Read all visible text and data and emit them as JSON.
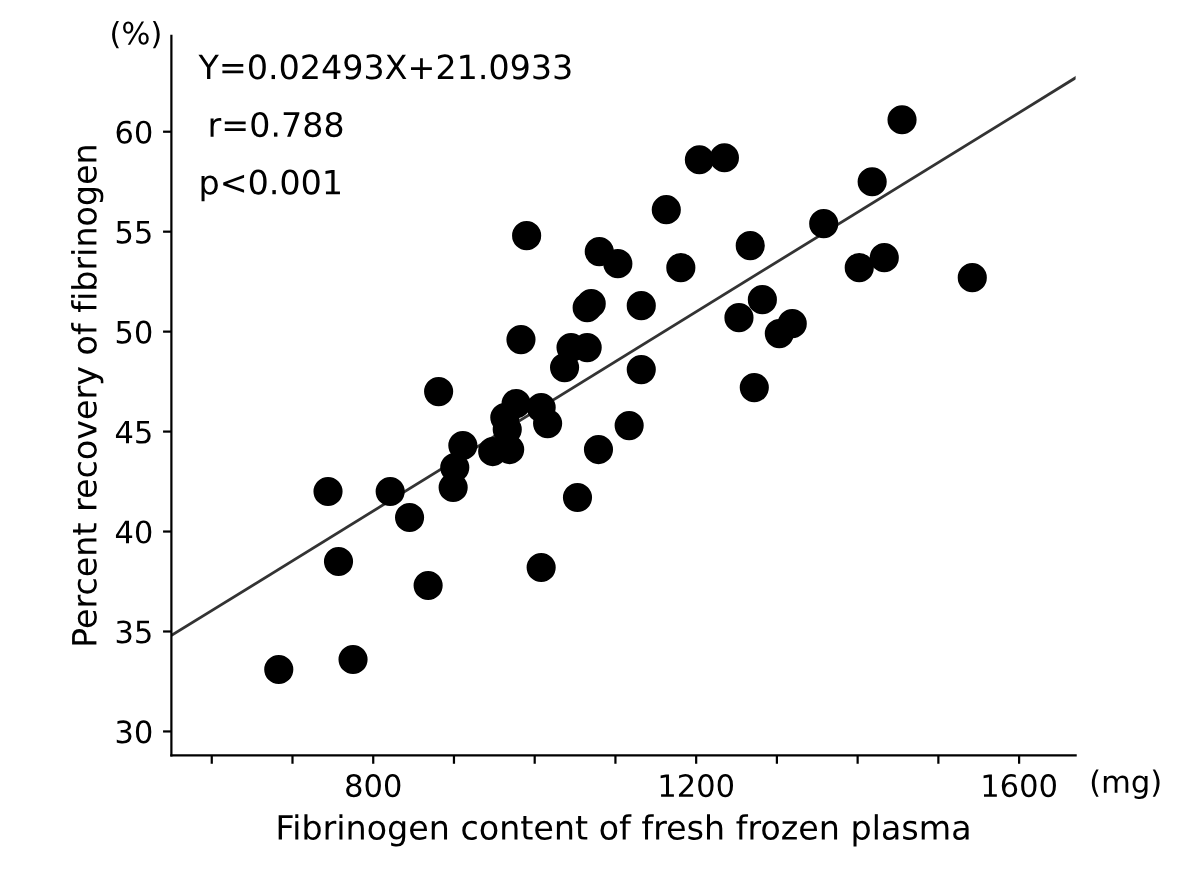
{
  "chart_data": {
    "type": "scatter",
    "xlabel": "Fibrinogen content of fresh frozen plasma",
    "ylabel": "Percent recovery of fibrinogen",
    "annotations": [
      "Y=0.02493X+21.0933",
      "r=0.788",
      "p<0.001",
      "(%)",
      "(mg)"
    ],
    "xlim": [
      550,
      1670
    ],
    "ylim": [
      28.8,
      64.8
    ],
    "xticks": [
      {
        "value": 600,
        "label": null
      },
      {
        "value": 700,
        "label": null
      },
      800,
      {
        "value": 900,
        "label": null
      },
      {
        "value": 1000,
        "label": null
      },
      {
        "value": 1100,
        "label": null
      },
      1200,
      {
        "value": 1300,
        "label": null
      },
      {
        "value": 1400,
        "label": null
      },
      {
        "value": 1500,
        "label": null
      },
      1600
    ],
    "yticks": [
      30,
      35,
      40,
      45,
      50,
      55,
      60
    ],
    "grid": false,
    "legend": false,
    "marker": "circle",
    "series": [
      {
        "color": "#000000",
        "x": [
          683,
          775,
          744,
          757,
          821,
          845,
          868,
          881,
          911,
          901,
          899,
          948,
          969,
          966,
          963,
          977,
          983,
          990,
          1008,
          1016,
          1008,
          1037,
          1045,
          1065,
          1053,
          1065,
          1070,
          1079,
          1080,
          1103,
          1117,
          1132,
          1132,
          1163,
          1181,
          1204,
          1235,
          1267,
          1253,
          1282,
          1272,
          1303,
          1319,
          1358,
          1402,
          1433,
          1418,
          1455,
          1542
        ],
        "values": [
          33.1,
          33.6,
          42.0,
          38.5,
          42.0,
          40.7,
          37.3,
          47.0,
          44.3,
          43.2,
          42.2,
          44.0,
          44.1,
          45.1,
          45.7,
          46.4,
          49.6,
          54.8,
          46.2,
          45.4,
          38.2,
          48.2,
          49.2,
          49.2,
          41.7,
          51.2,
          51.4,
          44.1,
          54.0,
          53.4,
          45.3,
          51.3,
          48.1,
          56.1,
          53.2,
          58.6,
          58.7,
          54.3,
          50.7,
          51.6,
          47.2,
          49.9,
          50.4,
          55.4,
          53.2,
          53.7,
          57.5,
          60.6,
          52.7
        ]
      },
      {
        "type": "line",
        "color": "#333333",
        "marker": "none",
        "line_style": "solid",
        "x": [
          550,
          1670
        ],
        "values": [
          34.8,
          62.7
        ]
      }
    ]
  }
}
